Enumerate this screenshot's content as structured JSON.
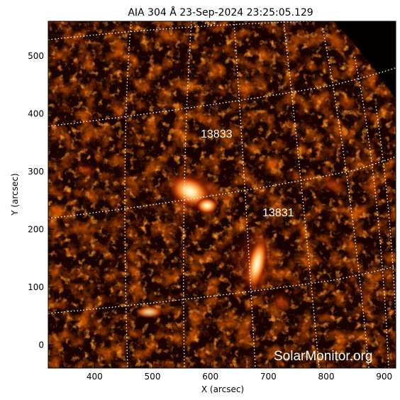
{
  "title": "AIA 304 Å 23-Sep-2024 23:25:05.129",
  "xaxis": {
    "label": "X (arcsec)",
    "ticks": [
      "400",
      "500",
      "600",
      "700",
      "800",
      "900"
    ],
    "range": [
      320,
      920
    ]
  },
  "yaxis": {
    "label": "Y (arcsec)",
    "ticks": [
      "0",
      "100",
      "200",
      "300",
      "400",
      "500"
    ],
    "range": [
      -40,
      560
    ]
  },
  "regions": [
    {
      "number": "13833",
      "x": 610,
      "y": 385
    },
    {
      "number": "13831",
      "x": 700,
      "y": 225
    }
  ],
  "watermark": "SolarMonitor.org",
  "colors": {
    "background": "#ffffff",
    "image_dark": "#0a0000",
    "image_mid": "#8a1800",
    "image_bright": "#ffe6a0",
    "grid": "#ffffff"
  }
}
